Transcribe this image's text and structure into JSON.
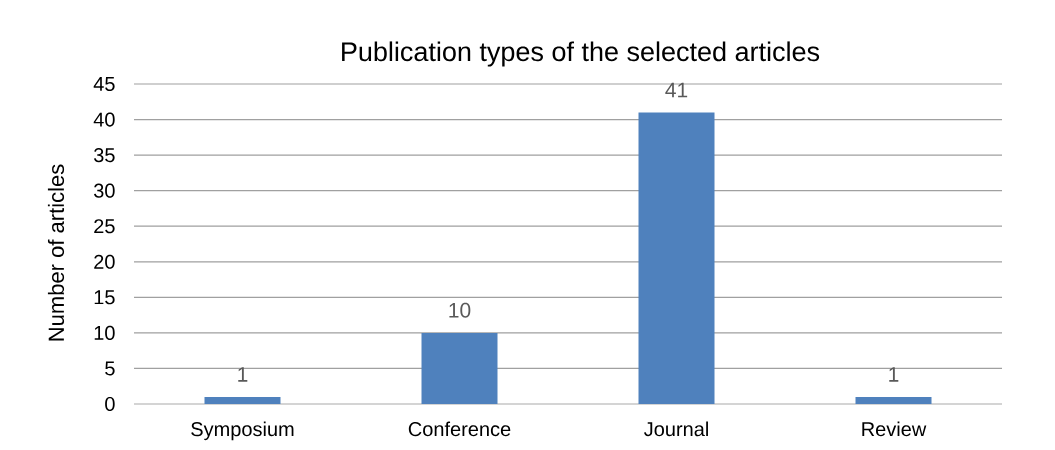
{
  "chart_data": {
    "type": "bar",
    "title": "Publication types of the selected articles",
    "ylabel": "Number of articles",
    "categories": [
      "Symposium",
      "Conference",
      "Journal",
      "Review"
    ],
    "values": [
      1,
      10,
      41,
      1
    ],
    "color": "#4f81bd",
    "ylim": [
      0,
      45
    ],
    "yticks": [
      0,
      5,
      10,
      15,
      20,
      25,
      30,
      35,
      40,
      45
    ],
    "grid": "y",
    "data_labels": true
  }
}
